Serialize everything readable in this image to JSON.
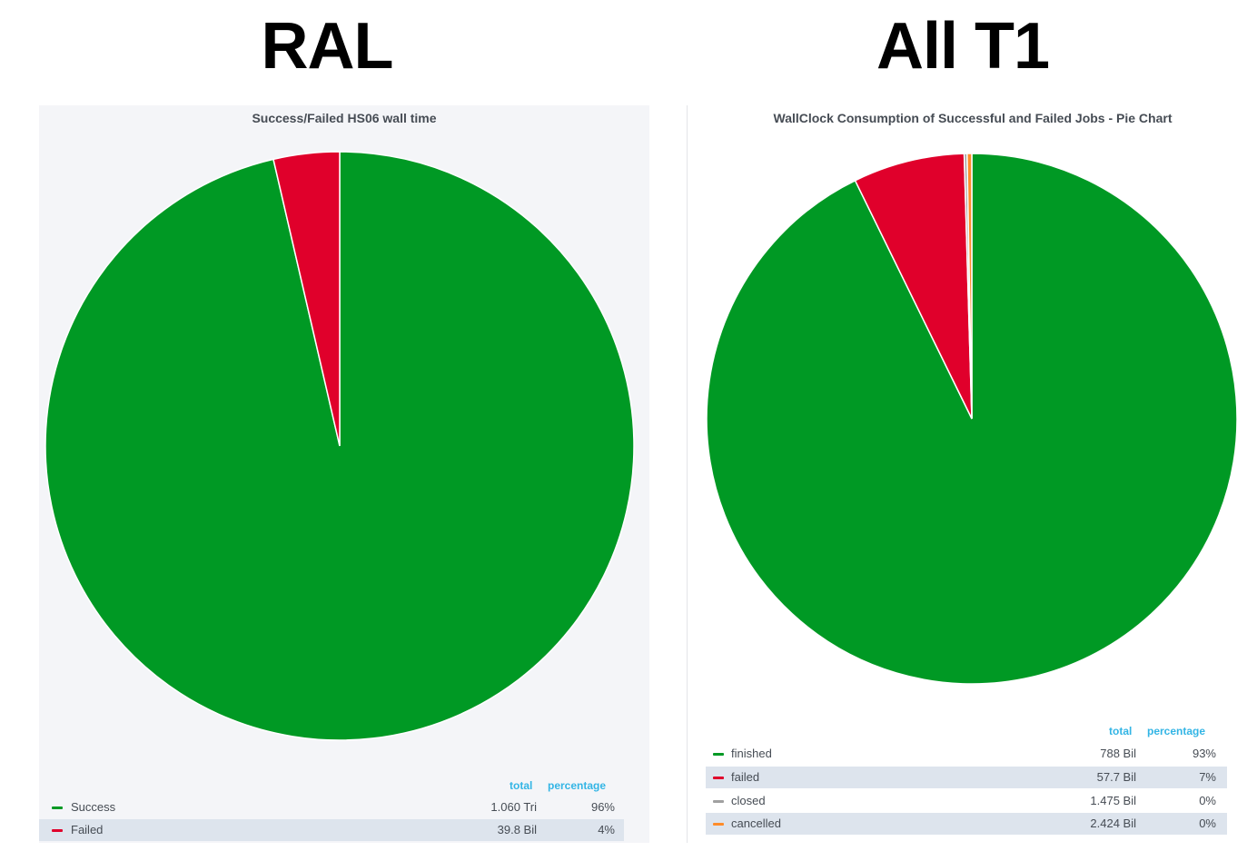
{
  "titles": {
    "left": "RAL",
    "right": "All T1"
  },
  "chart_data": [
    {
      "type": "pie",
      "title": "Success/Failed HS06 wall time",
      "legend_columns": [
        "total",
        "percentage"
      ],
      "slices": [
        {
          "name": "Success",
          "value": 1060,
          "total_label": "1.060 Tri",
          "percentage": "96%",
          "color": "#009924"
        },
        {
          "name": "Failed",
          "value": 39.8,
          "total_label": "39.8 Bil",
          "percentage": "4%",
          "color": "#e0002b"
        }
      ]
    },
    {
      "type": "pie",
      "title": "WallClock Consumption of Successful and Failed Jobs - Pie Chart",
      "legend_columns": [
        "total",
        "percentage"
      ],
      "slices": [
        {
          "name": "finished",
          "value": 788,
          "total_label": "788 Bil",
          "percentage": "93%",
          "color": "#009924"
        },
        {
          "name": "failed",
          "value": 57.7,
          "total_label": "57.7 Bil",
          "percentage": "7%",
          "color": "#e0002b"
        },
        {
          "name": "closed",
          "value": 1.475,
          "total_label": "1.475 Bil",
          "percentage": "0%",
          "color": "#a0a0a0"
        },
        {
          "name": "cancelled",
          "value": 2.424,
          "total_label": "2.424 Bil",
          "percentage": "0%",
          "color": "#ff8c2a"
        }
      ]
    }
  ]
}
